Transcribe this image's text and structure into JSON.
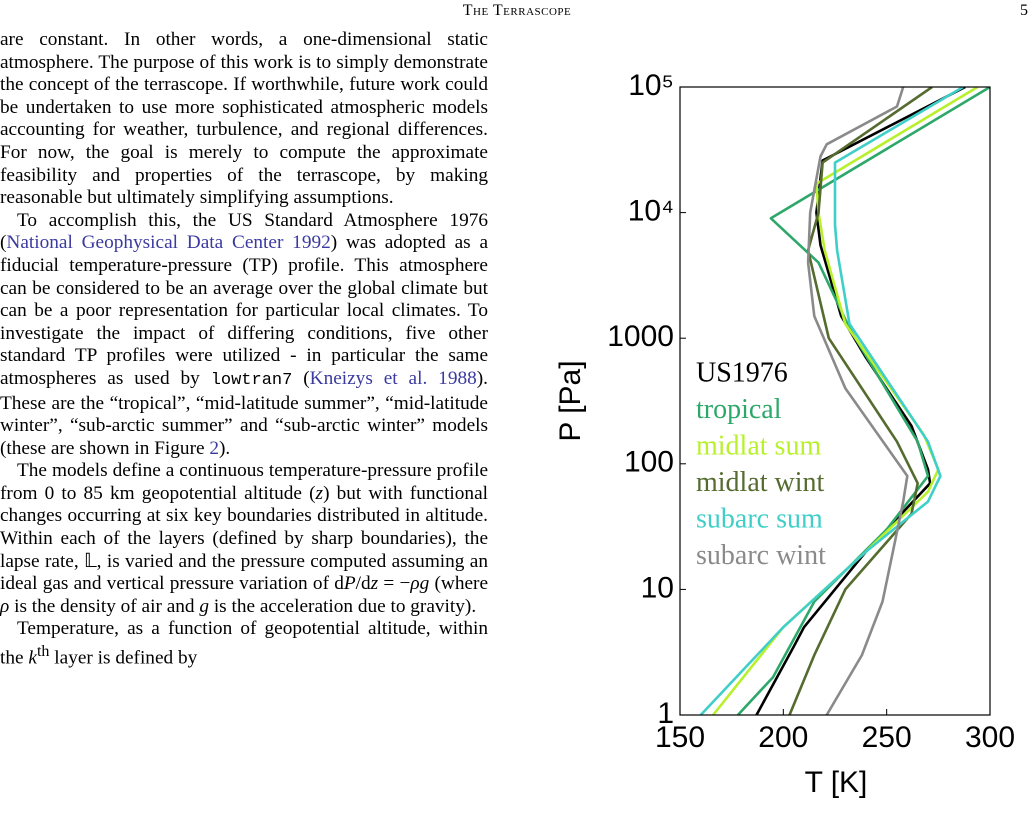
{
  "header": {
    "title": "The Terrascope",
    "page": "5"
  },
  "paragraphs": [
    [
      "are constant. In other words, a one-dimensional static atmosphere. The purpose of this work is to simply demonstrate the concept of the terrascope. If worthwhile, future work could be undertaken to use more sophisticated atmospheric models accounting for weather, turbulence, and regional differences. For now, the goal is merely to compute the approximate feasibility and properties of the terrascope, by making reasonable but ultimately simplifying assumptions."
    ],
    [
      "To accomplish this, the US Standard Atmosphere 1976 (",
      "National Geophysical Data Center 1992",
      ") was adopted as a fiducial temperature-pressure (TP) profile. This atmosphere can be considered to be an average over the global climate but can be a poor representation for particular local climates. To investigate the impact of differing conditions, five other standard TP profiles were utilized - in particular the same atmospheres as used by ",
      "lowtran7",
      " (",
      "Kneizys et al. 1988",
      "). These are the “tropical”, “mid-latitude summer”, “mid-latitude winter”, “sub-arctic summer” and “sub-arctic winter” models (these are shown in Figure ",
      "2",
      ")."
    ],
    [
      "The models define a continuous temperature-pressure profile from 0 to 85 km geopotential altitude (",
      "z",
      ") but with functional changes occurring at six key boundaries distributed in altitude. Within each of the layers (defined by sharp boundaries), the lapse rate, ",
      "𝕃",
      ", is varied and the pressure computed assuming an ideal gas and vertical pressure variation of d",
      "P",
      "/d",
      "z",
      " = −",
      "ρg",
      " (where ",
      "ρ",
      " is the density of air and ",
      "g",
      " is the acceleration due to gravity)."
    ],
    [
      "Temperature, as a function of geopotential altitude, within the ",
      "k",
      "th",
      " layer is defined by"
    ]
  ],
  "chart_data": {
    "type": "line",
    "xlabel": "T [K]",
    "ylabel": "P [Pa]",
    "xlim": [
      150,
      300
    ],
    "xticks": [
      150,
      200,
      250,
      300
    ],
    "ylim": [
      1,
      100000
    ],
    "ylog": true,
    "yticks": [
      1,
      10,
      100,
      1000,
      {
        "value": 10000,
        "label": "10⁴"
      },
      {
        "value": 100000,
        "label": "10⁵"
      }
    ],
    "legend": "center-left",
    "series": [
      {
        "name": "US1976",
        "color": "#000000",
        "x": [
          288,
          219,
          216,
          218,
          228,
          240,
          262,
          270,
          271,
          240,
          210,
          205,
          187
        ],
        "values": [
          100000,
          26000,
          10000,
          5500,
          1500,
          700,
          200,
          90,
          70,
          20,
          5,
          3.5,
          1
        ]
      },
      {
        "name": "tropical",
        "color": "#2ea86a",
        "x": [
          300,
          194,
          217,
          232,
          265,
          270,
          250,
          215,
          195,
          178
        ],
        "values": [
          100000,
          9000,
          4000,
          1200,
          150,
          80,
          30,
          8,
          2,
          1
        ]
      },
      {
        "name": "midlat sum",
        "color": "#b8f02c",
        "x": [
          294,
          216,
          217,
          220,
          230,
          268,
          275,
          270,
          240,
          200,
          166
        ],
        "values": [
          100000,
          17000,
          10000,
          5000,
          1300,
          170,
          90,
          60,
          20,
          5,
          1
        ]
      },
      {
        "name": "midlat wint",
        "color": "#556b2f",
        "x": [
          272,
          219,
          217,
          212,
          222,
          255,
          265,
          262,
          230,
          215,
          203
        ],
        "values": [
          100000,
          25000,
          10000,
          5000,
          1000,
          150,
          70,
          40,
          10,
          3,
          1
        ]
      },
      {
        "name": "subarc sum",
        "color": "#3fcfc8",
        "x": [
          287,
          225,
          225,
          226,
          232,
          270,
          276,
          270,
          240,
          200,
          160
        ],
        "values": [
          100000,
          25000,
          8000,
          5000,
          1300,
          150,
          80,
          50,
          20,
          5,
          1
        ]
      },
      {
        "name": "subarc wint",
        "color": "#8a8a8a",
        "x": [
          258,
          255,
          221,
          218,
          213,
          212,
          215,
          230,
          260,
          258,
          253,
          248,
          238,
          221
        ],
        "values": [
          100000,
          70000,
          35000,
          28000,
          10000,
          4000,
          1500,
          400,
          80,
          50,
          20,
          8,
          3,
          1
        ]
      }
    ]
  }
}
